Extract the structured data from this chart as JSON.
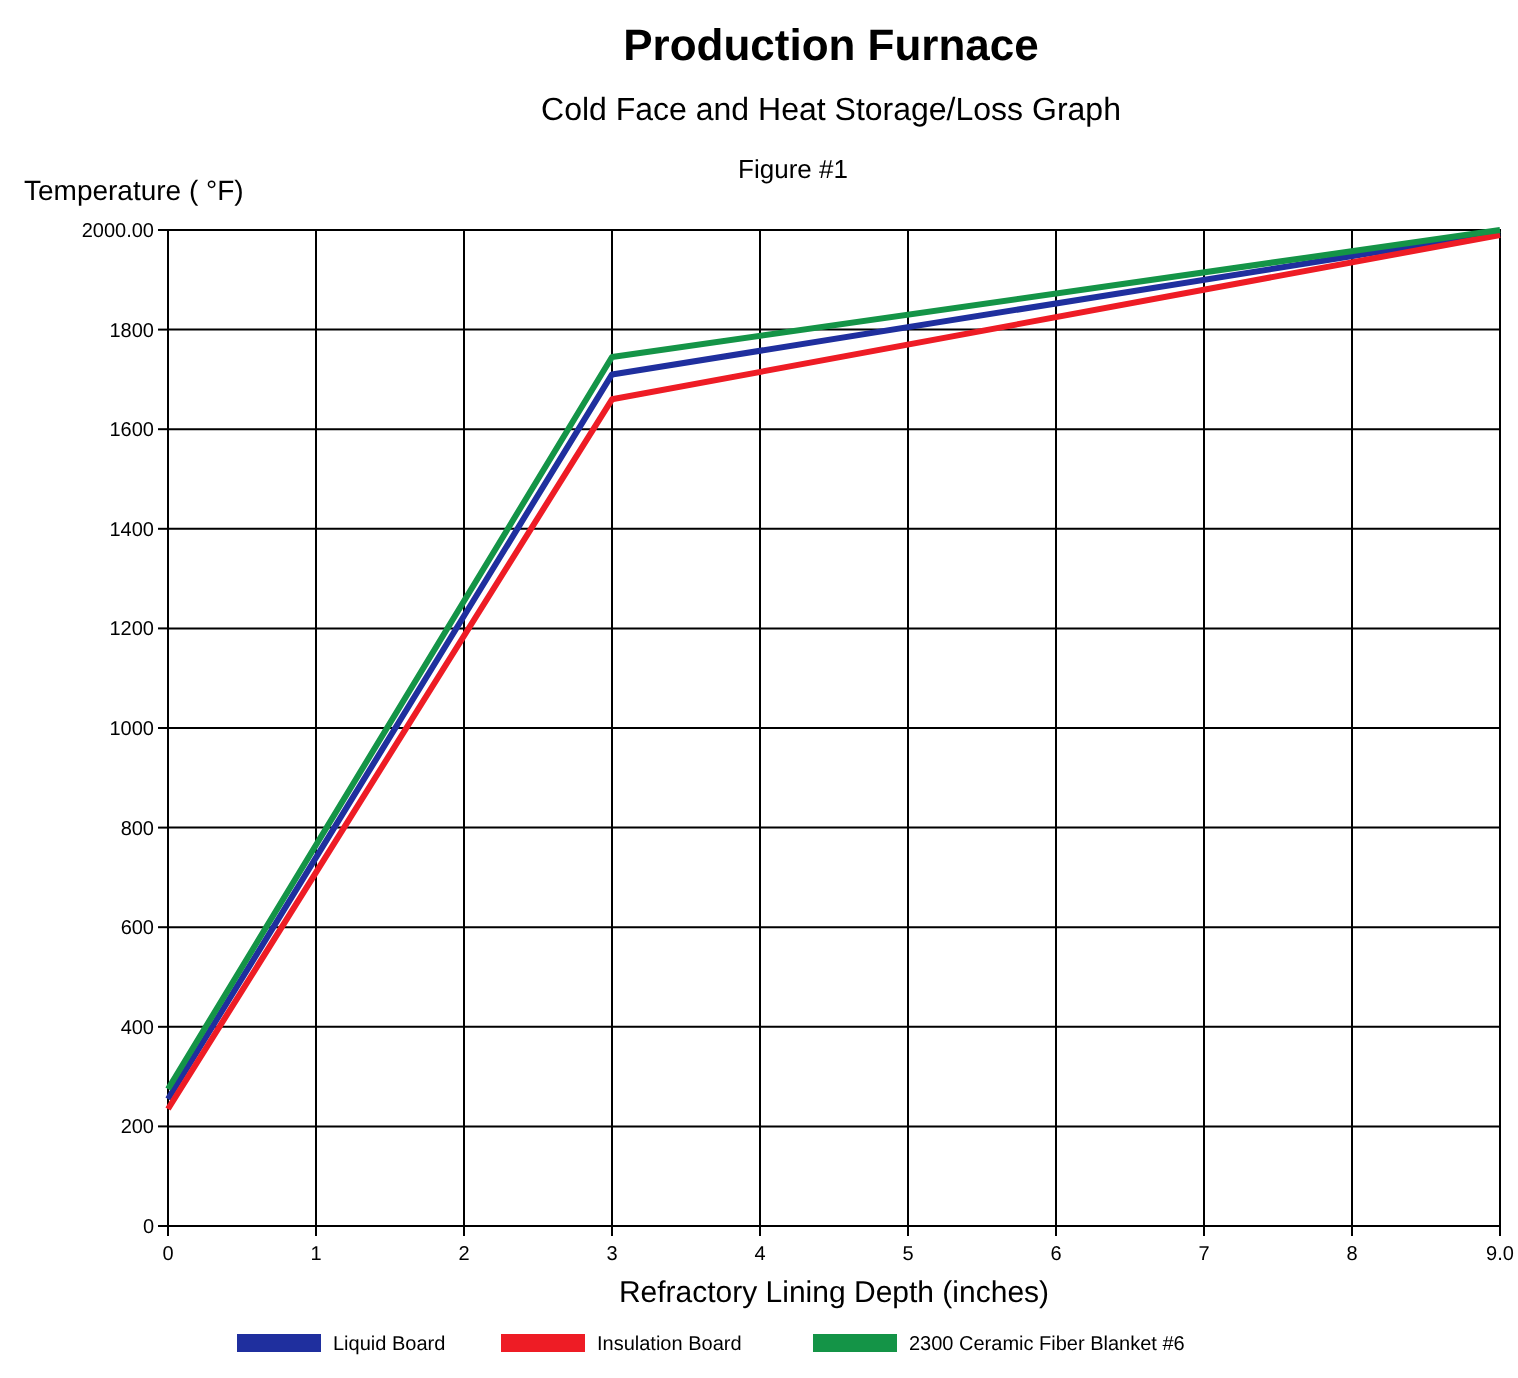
{
  "chart_data": {
    "type": "line",
    "title": "Production Furnace",
    "subtitle": "Cold Face and Heat Storage/Loss Graph",
    "annotations": [
      "Figure #1"
    ],
    "xlabel": "Refractory Lining Depth (inches)",
    "ylabel": "Temperature ( °F)",
    "x": [
      0,
      3,
      9
    ],
    "series": [
      {
        "name": "Liquid Board",
        "color": "#1f2f9e",
        "values": [
          255,
          1710,
          1995
        ]
      },
      {
        "name": "Insulation Board",
        "color": "#ee1c25",
        "values": [
          235,
          1660,
          1990
        ]
      },
      {
        "name": "2300 Ceramic Fiber Blanket #6",
        "color": "#149447",
        "values": [
          275,
          1745,
          2000
        ]
      }
    ],
    "xlim": [
      0,
      9
    ],
    "xticks": [
      0,
      1,
      2,
      3,
      4,
      5,
      6,
      7,
      8,
      {
        "value": 9,
        "label": "9.0"
      }
    ],
    "ylim": [
      0,
      2000
    ],
    "yticks": [
      0,
      200,
      400,
      600,
      800,
      1000,
      1200,
      1400,
      1600,
      1800,
      {
        "value": 2000,
        "label": "2000.00"
      }
    ],
    "grid": true,
    "legend": "bottom",
    "marker": "none",
    "line_style": "solid"
  }
}
